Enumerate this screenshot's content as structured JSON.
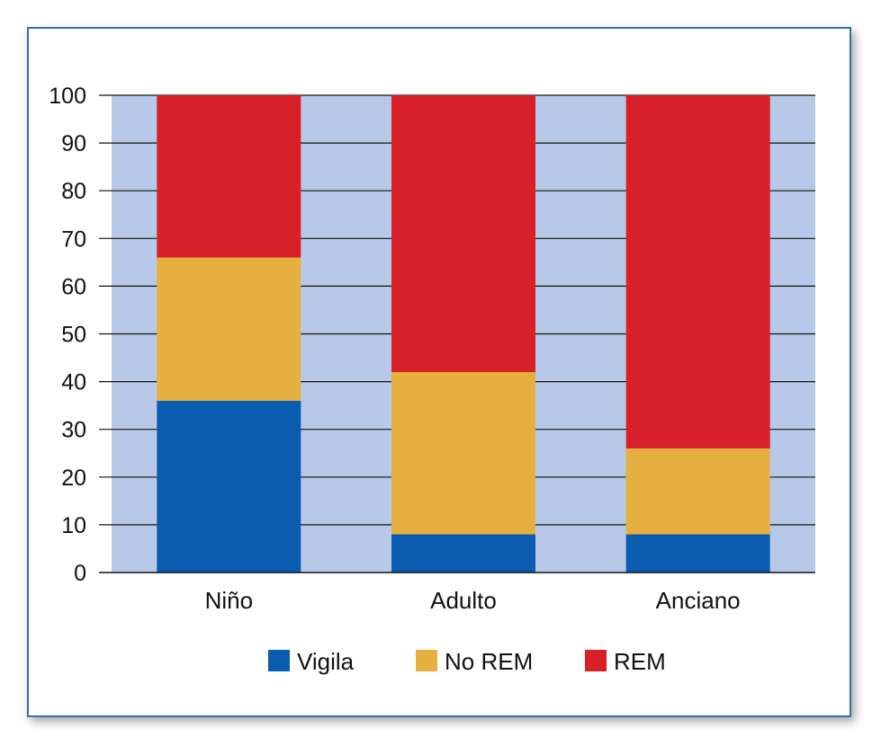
{
  "chart_data": {
    "type": "bar",
    "stacked": true,
    "categories": [
      "Niño",
      "Adulto",
      "Anciano"
    ],
    "series": [
      {
        "name": "Vigila",
        "color": "#0a5cb0",
        "values": [
          36,
          8,
          8
        ]
      },
      {
        "name": "No REM",
        "color": "#e6b040",
        "values": [
          30,
          34,
          18
        ]
      },
      {
        "name": "REM",
        "color": "#d72027",
        "values": [
          34,
          58,
          74
        ]
      }
    ],
    "yticks": [
      0,
      10,
      20,
      30,
      40,
      50,
      60,
      70,
      80,
      90,
      100
    ],
    "ylim": [
      0,
      100
    ],
    "grid": true,
    "plot_background": "#b8c8e8",
    "legend_position": "bottom",
    "title": "",
    "xlabel": "",
    "ylabel": ""
  }
}
